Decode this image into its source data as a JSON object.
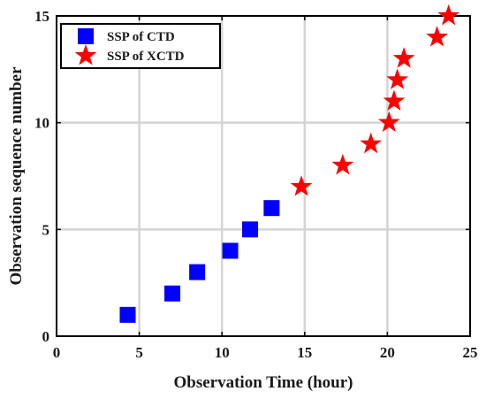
{
  "chart_data": {
    "type": "scatter",
    "title": "",
    "xlabel": "Observation Time (hour)",
    "ylabel": "Observation sequence number",
    "xlim": [
      0,
      25
    ],
    "ylim": [
      0,
      15
    ],
    "xticks": [
      0,
      5,
      10,
      15,
      20,
      25
    ],
    "yticks": [
      0,
      5,
      10,
      15
    ],
    "xtick_labels": [
      "0",
      "5",
      "10",
      "15",
      "20",
      "25"
    ],
    "ytick_labels": [
      "0",
      "5",
      "10",
      "15"
    ],
    "grid": true,
    "legend_position": "top-left",
    "series": [
      {
        "name": "SSP of CTD",
        "marker": "square",
        "color": "#0000ff",
        "points": [
          {
            "x": 4.3,
            "y": 1
          },
          {
            "x": 7.0,
            "y": 2
          },
          {
            "x": 8.5,
            "y": 3
          },
          {
            "x": 10.5,
            "y": 4
          },
          {
            "x": 11.7,
            "y": 5
          },
          {
            "x": 13.0,
            "y": 6
          }
        ]
      },
      {
        "name": "SSP of XCTD",
        "marker": "star",
        "color": "#ff0000",
        "points": [
          {
            "x": 14.8,
            "y": 7
          },
          {
            "x": 17.3,
            "y": 8
          },
          {
            "x": 19.0,
            "y": 9
          },
          {
            "x": 20.1,
            "y": 10
          },
          {
            "x": 20.4,
            "y": 11
          },
          {
            "x": 20.6,
            "y": 12
          },
          {
            "x": 21.0,
            "y": 13
          },
          {
            "x": 23.0,
            "y": 14
          },
          {
            "x": 23.7,
            "y": 15
          }
        ]
      }
    ]
  }
}
